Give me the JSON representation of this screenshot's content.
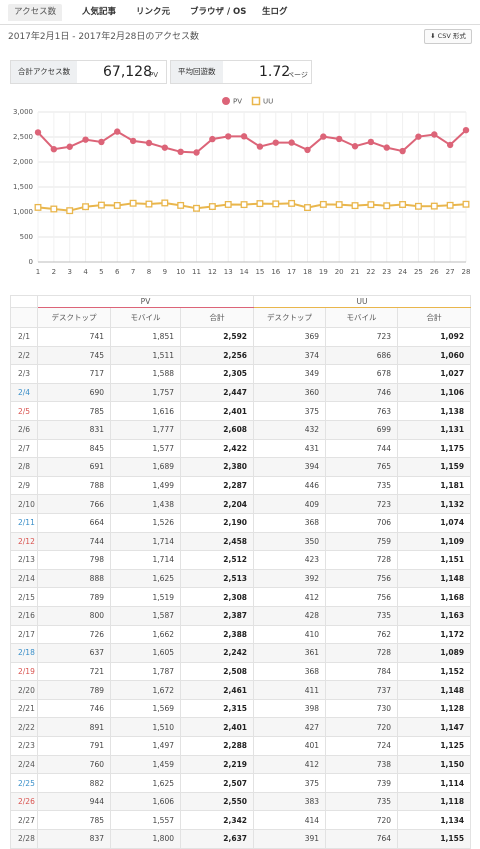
{
  "tabs": [
    "アクセス数",
    "人気記事",
    "リンク元",
    "ブラウザ / OS",
    "生ログ"
  ],
  "period": "2017年2月1日 - 2017年2月28日のアクセス数",
  "csv_button": "CSV 形式",
  "summary": {
    "total_label": "合計アクセス数",
    "total_value": "67,128",
    "total_unit": "PV",
    "avg_label": "平均回遊数",
    "avg_value": "1.72",
    "avg_unit": "ページ"
  },
  "chart_data": {
    "type": "line",
    "categories": [
      "1",
      "2",
      "3",
      "4",
      "5",
      "6",
      "7",
      "8",
      "9",
      "10",
      "11",
      "12",
      "13",
      "14",
      "15",
      "16",
      "17",
      "18",
      "19",
      "20",
      "21",
      "22",
      "23",
      "24",
      "25",
      "26",
      "27",
      "28"
    ],
    "x_label_colors": [
      "#555",
      "#555",
      "#555",
      "#3a8fc9",
      "#d9534f",
      "#555",
      "#555",
      "#555",
      "#555",
      "#555",
      "#3a8fc9",
      "#d9534f",
      "#555",
      "#555",
      "#555",
      "#555",
      "#555",
      "#3a8fc9",
      "#d9534f",
      "#555",
      "#555",
      "#555",
      "#555",
      "#555",
      "#3a8fc9",
      "#d9534f",
      "#555",
      "#555"
    ],
    "series": [
      {
        "name": "PV",
        "color": "#dc6478",
        "marker": "circle",
        "values": [
          2592,
          2256,
          2305,
          2447,
          2401,
          2608,
          2422,
          2380,
          2287,
          2204,
          2190,
          2458,
          2512,
          2513,
          2308,
          2387,
          2388,
          2242,
          2508,
          2461,
          2315,
          2401,
          2288,
          2219,
          2507,
          2550,
          2342,
          2637
        ]
      },
      {
        "name": "UU",
        "color": "#e9b64c",
        "marker": "square",
        "values": [
          1092,
          1060,
          1027,
          1106,
          1138,
          1131,
          1175,
          1159,
          1181,
          1132,
          1074,
          1109,
          1151,
          1148,
          1168,
          1163,
          1172,
          1089,
          1152,
          1148,
          1128,
          1147,
          1125,
          1150,
          1114,
          1118,
          1134,
          1155
        ]
      }
    ],
    "ylim": [
      0,
      3000
    ],
    "yticks": [
      0,
      500,
      {
        "value": 1000,
        "label": "1,000"
      },
      {
        "value": 1500,
        "label": "1,500"
      },
      {
        "value": 2000,
        "label": "2,000"
      },
      {
        "value": 2500,
        "label": "2,500"
      },
      {
        "value": 3000,
        "label": "3,000"
      }
    ],
    "grid": true,
    "legend": "top"
  },
  "table": {
    "groups": [
      {
        "name": "PV",
        "color": "#dc6478"
      },
      {
        "name": "UU",
        "color": "#e9b64c"
      }
    ],
    "columns": [
      "デスクトップ",
      "モバイル",
      "合計"
    ],
    "date_colors": [
      "#555",
      "#555",
      "#555",
      "#3a8fc9",
      "#d9534f",
      "#555",
      "#555",
      "#555",
      "#555",
      "#555",
      "#3a8fc9",
      "#d9534f",
      "#555",
      "#555",
      "#555",
      "#555",
      "#555",
      "#3a8fc9",
      "#d9534f",
      "#555",
      "#555",
      "#555",
      "#555",
      "#555",
      "#3a8fc9",
      "#d9534f",
      "#555",
      "#555"
    ],
    "rows": [
      [
        "2/1",
        "741",
        "1,851",
        "2,592",
        "369",
        "723",
        "1,092"
      ],
      [
        "2/2",
        "745",
        "1,511",
        "2,256",
        "374",
        "686",
        "1,060"
      ],
      [
        "2/3",
        "717",
        "1,588",
        "2,305",
        "349",
        "678",
        "1,027"
      ],
      [
        "2/4",
        "690",
        "1,757",
        "2,447",
        "360",
        "746",
        "1,106"
      ],
      [
        "2/5",
        "785",
        "1,616",
        "2,401",
        "375",
        "763",
        "1,138"
      ],
      [
        "2/6",
        "831",
        "1,777",
        "2,608",
        "432",
        "699",
        "1,131"
      ],
      [
        "2/7",
        "845",
        "1,577",
        "2,422",
        "431",
        "744",
        "1,175"
      ],
      [
        "2/8",
        "691",
        "1,689",
        "2,380",
        "394",
        "765",
        "1,159"
      ],
      [
        "2/9",
        "788",
        "1,499",
        "2,287",
        "446",
        "735",
        "1,181"
      ],
      [
        "2/10",
        "766",
        "1,438",
        "2,204",
        "409",
        "723",
        "1,132"
      ],
      [
        "2/11",
        "664",
        "1,526",
        "2,190",
        "368",
        "706",
        "1,074"
      ],
      [
        "2/12",
        "744",
        "1,714",
        "2,458",
        "350",
        "759",
        "1,109"
      ],
      [
        "2/13",
        "798",
        "1,714",
        "2,512",
        "423",
        "728",
        "1,151"
      ],
      [
        "2/14",
        "888",
        "1,625",
        "2,513",
        "392",
        "756",
        "1,148"
      ],
      [
        "2/15",
        "789",
        "1,519",
        "2,308",
        "412",
        "756",
        "1,168"
      ],
      [
        "2/16",
        "800",
        "1,587",
        "2,387",
        "428",
        "735",
        "1,163"
      ],
      [
        "2/17",
        "726",
        "1,662",
        "2,388",
        "410",
        "762",
        "1,172"
      ],
      [
        "2/18",
        "637",
        "1,605",
        "2,242",
        "361",
        "728",
        "1,089"
      ],
      [
        "2/19",
        "721",
        "1,787",
        "2,508",
        "368",
        "784",
        "1,152"
      ],
      [
        "2/20",
        "789",
        "1,672",
        "2,461",
        "411",
        "737",
        "1,148"
      ],
      [
        "2/21",
        "746",
        "1,569",
        "2,315",
        "398",
        "730",
        "1,128"
      ],
      [
        "2/22",
        "891",
        "1,510",
        "2,401",
        "427",
        "720",
        "1,147"
      ],
      [
        "2/23",
        "791",
        "1,497",
        "2,288",
        "401",
        "724",
        "1,125"
      ],
      [
        "2/24",
        "760",
        "1,459",
        "2,219",
        "412",
        "738",
        "1,150"
      ],
      [
        "2/25",
        "882",
        "1,625",
        "2,507",
        "375",
        "739",
        "1,114"
      ],
      [
        "2/26",
        "944",
        "1,606",
        "2,550",
        "383",
        "735",
        "1,118"
      ],
      [
        "2/27",
        "785",
        "1,557",
        "2,342",
        "414",
        "720",
        "1,134"
      ],
      [
        "2/28",
        "837",
        "1,800",
        "2,637",
        "391",
        "764",
        "1,155"
      ]
    ]
  }
}
